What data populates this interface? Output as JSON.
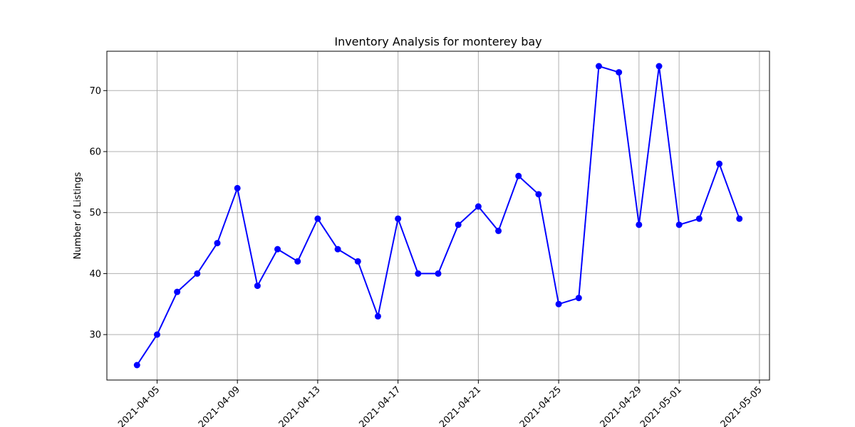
{
  "chart_data": {
    "type": "line",
    "title": "Inventory Analysis for monterey bay",
    "xlabel": "",
    "ylabel": "Number of Listings",
    "x": [
      "2021-04-04",
      "2021-04-05",
      "2021-04-06",
      "2021-04-07",
      "2021-04-08",
      "2021-04-09",
      "2021-04-10",
      "2021-04-11",
      "2021-04-12",
      "2021-04-13",
      "2021-04-14",
      "2021-04-15",
      "2021-04-16",
      "2021-04-17",
      "2021-04-18",
      "2021-04-19",
      "2021-04-20",
      "2021-04-21",
      "2021-04-22",
      "2021-04-23",
      "2021-04-24",
      "2021-04-25",
      "2021-04-26",
      "2021-04-27",
      "2021-04-28",
      "2021-04-29",
      "2021-04-30",
      "2021-05-01",
      "2021-05-02",
      "2021-05-03",
      "2021-05-04"
    ],
    "series": [
      {
        "values": [
          25,
          30,
          37,
          40,
          45,
          54,
          38,
          44,
          42,
          49,
          44,
          42,
          33,
          49,
          40,
          40,
          48,
          51,
          47,
          56,
          53,
          35,
          36,
          74,
          73,
          48,
          74,
          48,
          49,
          58,
          49
        ],
        "color": "#0000ff",
        "marker": "circle"
      }
    ],
    "xlim": [
      "2021-04-02T12:00",
      "2021-05-05T12:00"
    ],
    "ylim": [
      22.55,
      76.45
    ],
    "x_ticks": [
      "2021-04-05",
      "2021-04-09",
      "2021-04-13",
      "2021-04-17",
      "2021-04-21",
      "2021-04-25",
      "2021-04-29",
      "2021-05-01",
      "2021-05-05"
    ],
    "y_ticks": [
      30,
      40,
      50,
      60,
      70
    ],
    "grid": true,
    "legend": "none"
  }
}
